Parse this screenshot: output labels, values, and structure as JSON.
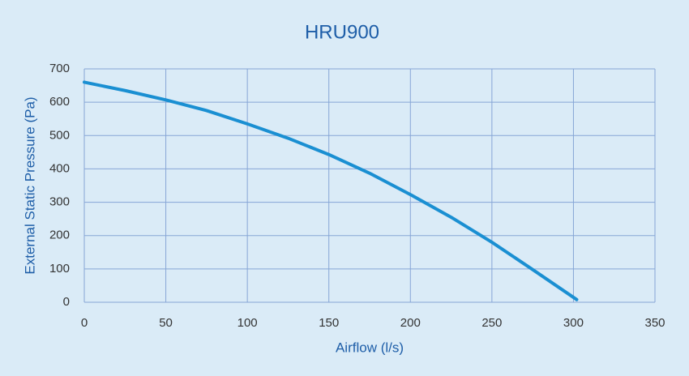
{
  "chart_data": {
    "type": "line",
    "title": "HRU900",
    "x_label": "Airflow (l/s)",
    "y_label": "External Static Pressure (Pa)",
    "x": [
      0,
      25,
      50,
      75,
      100,
      125,
      150,
      175,
      200,
      225,
      250,
      275,
      302
    ],
    "series": [
      {
        "color": "#1a8fd2",
        "values": [
          660,
          635,
          607,
          575,
          535,
          492,
          443,
          387,
          323,
          255,
          180,
          98,
          8
        ]
      }
    ],
    "xlim": [
      0,
      350
    ],
    "xticks": [
      0,
      50,
      100,
      150,
      200,
      250,
      300,
      350
    ],
    "ylim": [
      0,
      700
    ],
    "yticks": [
      0,
      100,
      200,
      300,
      400,
      500,
      600,
      700
    ],
    "grid": true
  }
}
